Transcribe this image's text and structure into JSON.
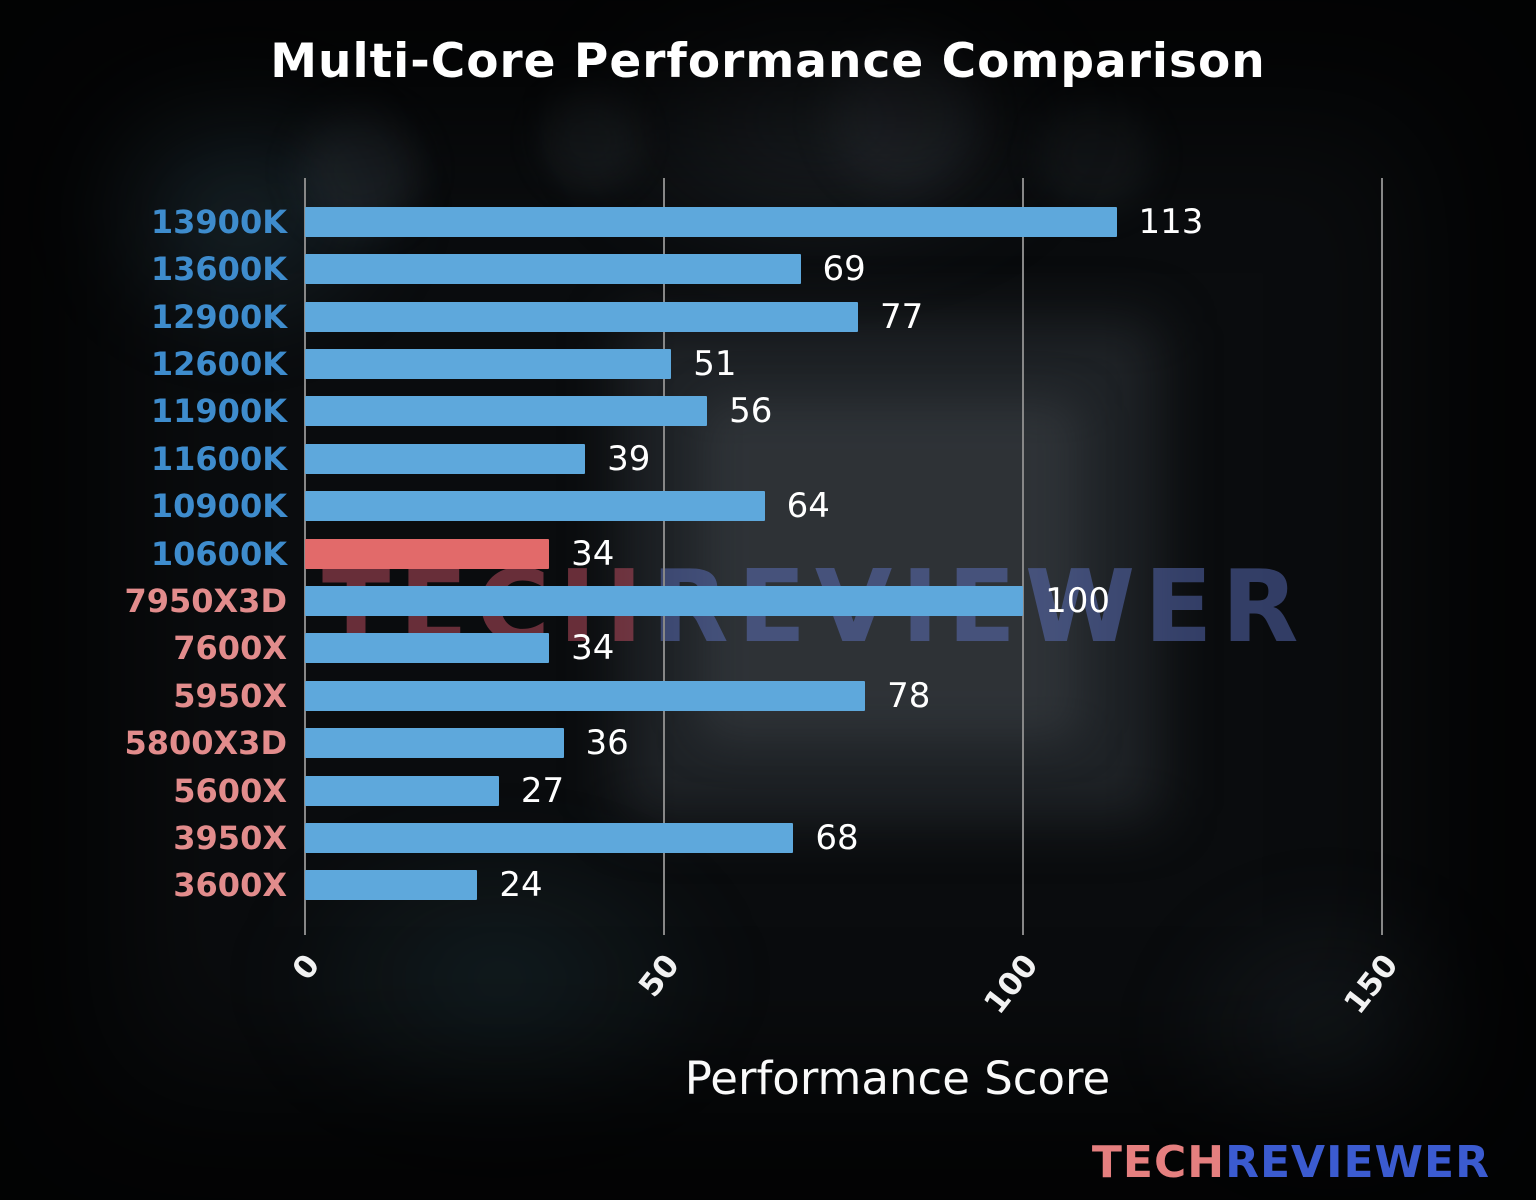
{
  "title": "Multi-Core Performance Comparison",
  "watermark": {
    "tech": "TECH",
    "reviewer": "REVIEWER"
  },
  "logo": {
    "tech": "TECH",
    "reviewer": "REVIEWER"
  },
  "chart_data": {
    "type": "bar",
    "orientation": "horizontal",
    "title": "Multi-Core Performance Comparison",
    "xlabel": "Performance Score",
    "xlim": [
      0,
      165
    ],
    "xticks": [
      0,
      50,
      100,
      150
    ],
    "grid": "vertical",
    "categories": [
      "13900K",
      "13600K",
      "12900K",
      "12600K",
      "11900K",
      "11600K",
      "10900K",
      "10600K",
      "7950X3D",
      "7600X",
      "5950X",
      "5800X3D",
      "5600X",
      "3950X",
      "3600X"
    ],
    "values": [
      113,
      69,
      77,
      51,
      56,
      39,
      64,
      34,
      100,
      34,
      78,
      36,
      27,
      68,
      24
    ],
    "category_groups": [
      "intel",
      "intel",
      "intel",
      "intel",
      "intel",
      "intel",
      "intel",
      "intel",
      "amd",
      "amd",
      "amd",
      "amd",
      "amd",
      "amd",
      "amd"
    ],
    "highlight_category": "10600K",
    "colors": {
      "bar_default": "#5ea8dc",
      "bar_highlight": "#e26a6a",
      "label_intel": "#3e8ccd",
      "label_amd": "#e28c8c",
      "value_text": "#ffffff",
      "gridline": "#878787"
    }
  }
}
